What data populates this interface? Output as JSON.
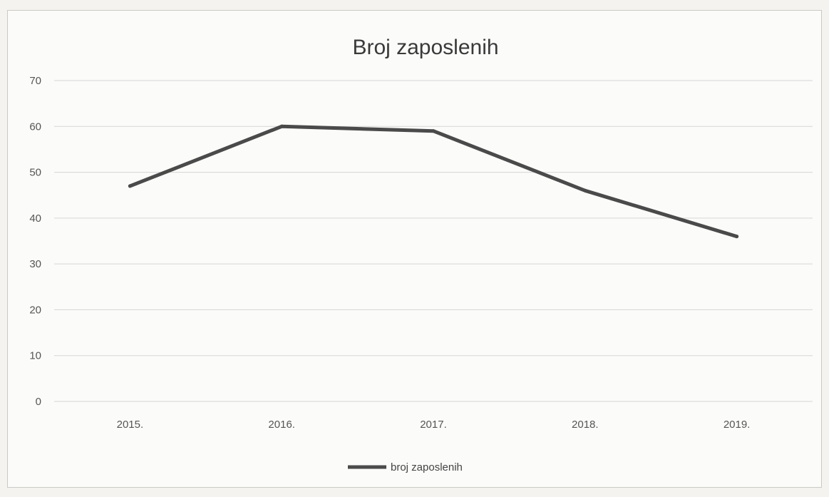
{
  "chart_data": {
    "type": "line",
    "title": "Broj zaposlenih",
    "xlabel": "",
    "ylabel": "",
    "categories": [
      "2015.",
      "2016.",
      "2017.",
      "2018.",
      "2019."
    ],
    "series": [
      {
        "name": "broj zaposlenih",
        "values": [
          47,
          60,
          59,
          46,
          36
        ],
        "color": "#4a4a4a"
      }
    ],
    "ylim": [
      0,
      70
    ],
    "yticks": [
      "0",
      "10",
      "20",
      "30",
      "40",
      "50",
      "60",
      "70"
    ],
    "grid": true,
    "legend_position": "bottom",
    "gridline_color": "#d6d6d6"
  }
}
